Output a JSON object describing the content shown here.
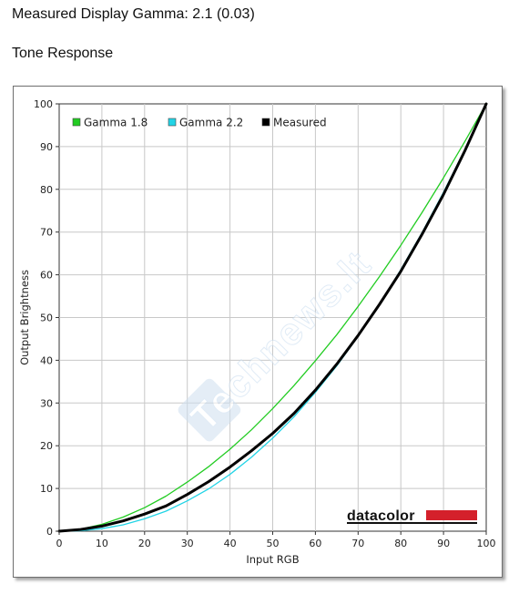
{
  "page": {
    "title": "Measured Display Gamma: 2.1 (0.03)",
    "subtitle": "Tone Response"
  },
  "branding": {
    "logo": "datacolor",
    "watermark": "Technews.lt"
  },
  "chart_data": {
    "type": "line",
    "xlabel": "Input RGB",
    "ylabel": "Output Brightness",
    "xlim": [
      0,
      100
    ],
    "ylim": [
      0,
      100
    ],
    "xticks": [
      0,
      10,
      20,
      30,
      40,
      50,
      60,
      70,
      80,
      90,
      100
    ],
    "yticks": [
      0,
      10,
      20,
      30,
      40,
      50,
      60,
      70,
      80,
      90,
      100
    ],
    "grid": true,
    "legend_position": "top-left",
    "x": [
      0,
      5,
      10,
      15,
      20,
      25,
      30,
      35,
      40,
      45,
      50,
      55,
      60,
      65,
      70,
      75,
      80,
      85,
      90,
      95,
      100
    ],
    "series": [
      {
        "name": "Gamma 1.8",
        "color": "#22cc22",
        "values": [
          0,
          0.5,
          1.6,
          3.3,
          5.5,
          8.2,
          11.5,
          15.1,
          19.2,
          23.7,
          28.7,
          34.1,
          39.9,
          46.0,
          52.6,
          59.6,
          66.9,
          74.6,
          82.7,
          91.2,
          100
        ]
      },
      {
        "name": "Gamma 2.2",
        "color": "#22d4e6",
        "values": [
          0,
          0.1,
          0.6,
          1.5,
          2.9,
          4.7,
          7.1,
          9.9,
          13.3,
          17.3,
          21.8,
          26.8,
          32.5,
          38.7,
          45.6,
          53.1,
          61.2,
          69.9,
          79.3,
          89.3,
          100
        ]
      },
      {
        "name": "Measured",
        "color": "#000000",
        "values": [
          0,
          0.4,
          1.2,
          2.4,
          4.0,
          5.9,
          8.6,
          11.6,
          15.0,
          18.8,
          22.9,
          27.6,
          33.0,
          39.1,
          45.8,
          53.1,
          60.8,
          69.5,
          78.8,
          89.0,
          100
        ]
      }
    ]
  }
}
